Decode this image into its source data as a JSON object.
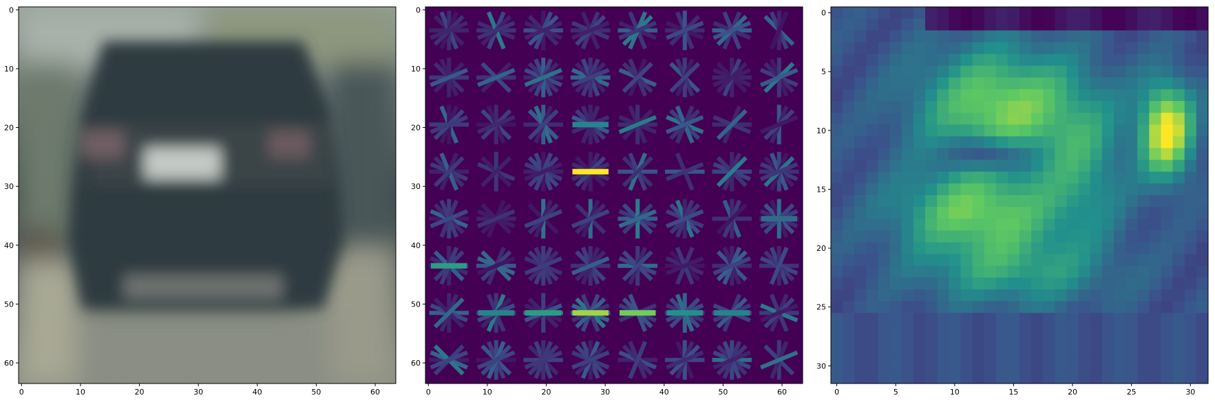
{
  "chart_data": [
    {
      "type": "heatmap",
      "subject": "blurred-car-photo",
      "colors": {
        "top": "#97a199",
        "middle": "#3c4a4c",
        "bottom": "#8a8f82"
      },
      "xlim": [
        -0.5,
        63.5
      ],
      "ylim": [
        63.5,
        -0.5
      ],
      "xticks": [
        0,
        10,
        20,
        30,
        40,
        50,
        60
      ],
      "yticks": [
        0,
        10,
        20,
        30,
        40,
        50,
        60
      ]
    },
    {
      "type": "heatmap",
      "colormap": "viridis",
      "subject": "hog-visualization",
      "xlim": [
        -0.5,
        63.5
      ],
      "ylim": [
        63.5,
        -0.5
      ],
      "xticks": [
        0,
        10,
        20,
        30,
        40,
        50,
        60
      ],
      "yticks": [
        0,
        10,
        20,
        30,
        40,
        50,
        60
      ]
    },
    {
      "type": "heatmap",
      "colormap": "viridis",
      "subject": "feature-map",
      "xlim": [
        -0.5,
        31.5
      ],
      "ylim": [
        31.5,
        -0.5
      ],
      "xticks": [
        0,
        5,
        10,
        15,
        20,
        25,
        30
      ],
      "yticks": [
        0,
        5,
        10,
        15,
        20,
        25,
        30
      ]
    }
  ]
}
